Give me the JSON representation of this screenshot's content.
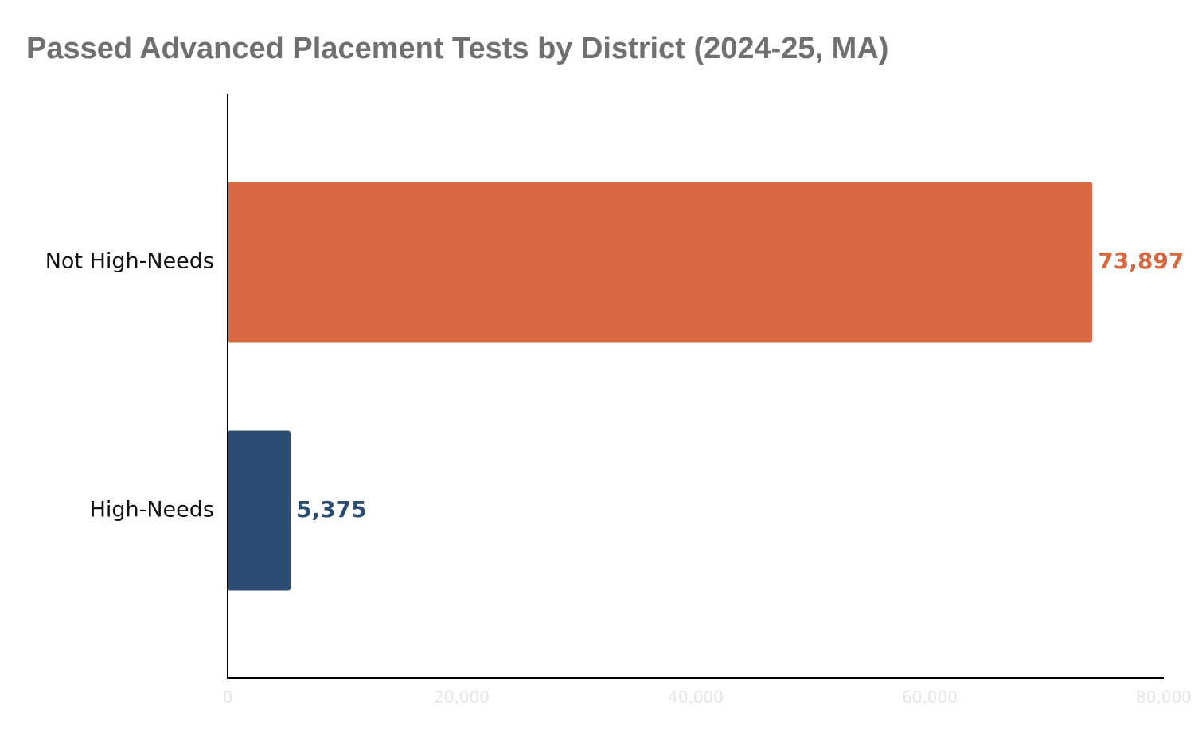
{
  "chart_data": {
    "type": "bar",
    "orientation": "horizontal",
    "title": "Passed Advanced Placement Tests by District (2024-25, MA)",
    "categories": [
      "Not High-Needs",
      "High-Needs"
    ],
    "values": [
      73897,
      5375
    ],
    "value_labels": [
      "73,897",
      "5,375"
    ],
    "colors": [
      "#D9673F",
      "#2C4D73"
    ],
    "xlim": [
      0,
      80000
    ],
    "x_ticks": [
      0,
      20000,
      40000,
      60000,
      80000
    ],
    "x_tick_labels": [
      "0",
      "20,000",
      "40,000",
      "60,000",
      "80,000"
    ],
    "xlabel": "",
    "ylabel": "",
    "grid": false,
    "legend": "none"
  }
}
